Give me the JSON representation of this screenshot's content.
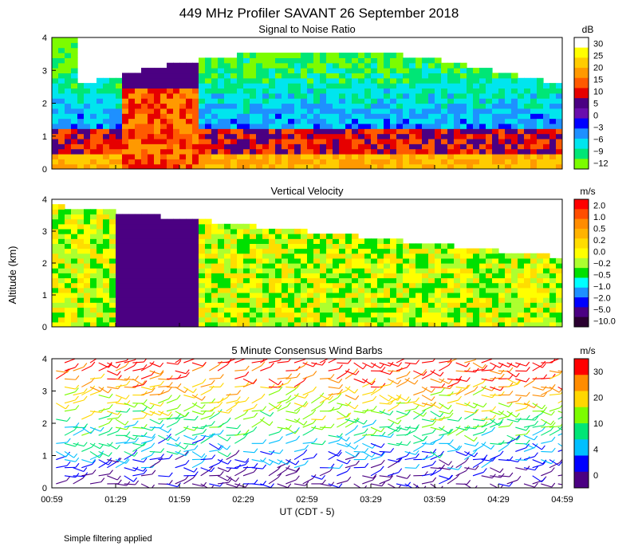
{
  "figure": {
    "title": "449 MHz Profiler SAVANT 26 September 2018",
    "ylabel": "Altitude (km)",
    "xlabel": "UT  (CDT - 5)",
    "footnote": "Simple filtering applied"
  },
  "chart_data": [
    {
      "type": "heatmap",
      "title": "Signal to Noise Ratio",
      "unit": "dB",
      "ylim": [
        0,
        4
      ],
      "yticks": [
        "0",
        "1",
        "2",
        "3",
        "4"
      ],
      "colorbar": {
        "labels": [
          "30",
          "25",
          "20",
          "15",
          "10",
          "5",
          "0",
          "−3",
          "−6",
          "−9",
          "−12"
        ],
        "colors": [
          "#ffffff",
          "#ffff00",
          "#ffcc00",
          "#ff9900",
          "#ff5a00",
          "#e60000",
          "#4b0082",
          "#6a0dad",
          "#0000ff",
          "#1e90ff",
          "#00e5ee",
          "#00e676",
          "#7cfc00"
        ]
      }
    },
    {
      "type": "heatmap",
      "title": "Vertical Velocity",
      "unit": "m/s",
      "ylim": [
        0,
        4
      ],
      "yticks": [
        "0",
        "1",
        "2",
        "3",
        "4"
      ],
      "colorbar": {
        "labels": [
          "2.0",
          "1.0",
          "0.5",
          "0.2",
          "0.0",
          "−0.2",
          "−0.5",
          "−1.0",
          "−2.0",
          "−5.0",
          "−10.0"
        ],
        "colors": [
          "#ff0000",
          "#ff4d00",
          "#ff8c00",
          "#ffb300",
          "#ffdd00",
          "#ffff00",
          "#adff2f",
          "#00e000",
          "#00ffff",
          "#1e90ff",
          "#0000ff",
          "#4b0082",
          "#2a0030"
        ]
      }
    },
    {
      "type": "wind_barbs",
      "title": "5 Minute Consensus Wind Barbs",
      "unit": "m/s",
      "ylim": [
        0,
        4
      ],
      "yticks": [
        "0",
        "1",
        "2",
        "3",
        "4"
      ],
      "colorbar": {
        "labels": [
          "30",
          "20",
          "10",
          "4",
          "0"
        ],
        "colors": [
          "#ff0000",
          "#ff8c00",
          "#ffd700",
          "#7cfc00",
          "#00e676",
          "#00bfff",
          "#0000ff",
          "#4b0082"
        ]
      }
    }
  ],
  "xaxis": {
    "ticks": [
      "00:59",
      "01:29",
      "01:59",
      "02:29",
      "02:59",
      "03:29",
      "03:59",
      "04:29",
      "04:59"
    ]
  }
}
